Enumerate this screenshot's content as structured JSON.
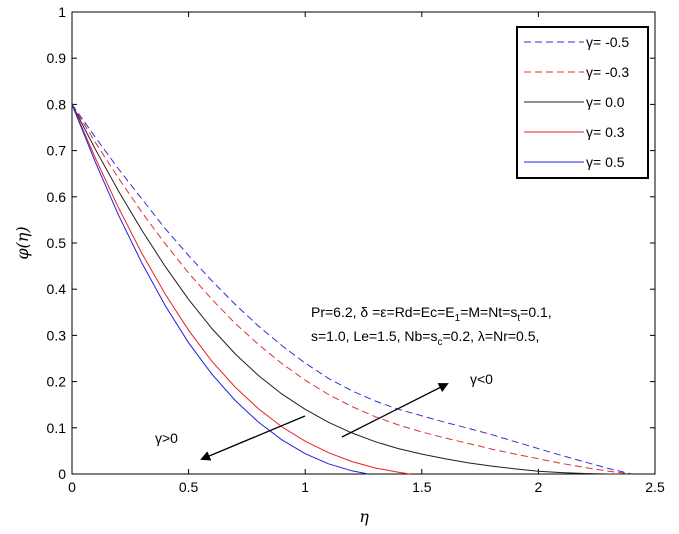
{
  "chart_data": {
    "type": "line",
    "xlabel": "η",
    "ylabel": "φ(η)",
    "xlim": [
      0,
      2.5
    ],
    "ylim": [
      0,
      1
    ],
    "x_ticks": [
      "0",
      "0.5",
      "1",
      "1.5",
      "2",
      "2.5"
    ],
    "y_ticks": [
      "0",
      "0.1",
      "0.2",
      "0.3",
      "0.4",
      "0.5",
      "0.6",
      "0.7",
      "0.8",
      "0.9",
      "1"
    ],
    "grid": false,
    "legend_position": "top-right",
    "series": [
      {
        "name": "γ= -0.5",
        "color": "#2f2fd8",
        "dash": "dashed",
        "x": [
          0,
          0.1,
          0.2,
          0.3,
          0.4,
          0.5,
          0.6,
          0.7,
          0.8,
          0.9,
          1.0,
          1.1,
          1.2,
          1.3,
          1.4,
          1.5,
          1.6,
          1.7,
          1.8,
          1.9,
          2.0,
          2.1,
          2.2,
          2.3,
          2.4
        ],
        "values": [
          0.8,
          0.729,
          0.66,
          0.595,
          0.531,
          0.473,
          0.418,
          0.367,
          0.32,
          0.278,
          0.24,
          0.207,
          0.18,
          0.158,
          0.14,
          0.126,
          0.112,
          0.099,
          0.085,
          0.07,
          0.055,
          0.04,
          0.026,
          0.012,
          0.0
        ]
      },
      {
        "name": "γ= -0.3",
        "color": "#e03030",
        "dash": "dashed",
        "x": [
          0,
          0.1,
          0.2,
          0.3,
          0.4,
          0.5,
          0.6,
          0.7,
          0.8,
          0.9,
          1.0,
          1.1,
          1.2,
          1.3,
          1.4,
          1.5,
          1.6,
          1.7,
          1.8,
          1.9,
          2.0,
          2.1,
          2.2,
          2.3,
          2.4
        ],
        "values": [
          0.8,
          0.718,
          0.64,
          0.566,
          0.498,
          0.435,
          0.378,
          0.326,
          0.28,
          0.239,
          0.203,
          0.172,
          0.146,
          0.124,
          0.106,
          0.091,
          0.078,
          0.066,
          0.054,
          0.043,
          0.033,
          0.023,
          0.014,
          0.006,
          0.0
        ]
      },
      {
        "name": "γ= 0.0",
        "color": "#202020",
        "dash": "solid",
        "x": [
          0,
          0.1,
          0.2,
          0.3,
          0.4,
          0.5,
          0.6,
          0.7,
          0.8,
          0.9,
          1.0,
          1.1,
          1.2,
          1.3,
          1.4,
          1.5,
          1.6,
          1.7,
          1.8,
          1.9,
          2.0,
          2.1,
          2.2,
          2.3,
          2.4
        ],
        "values": [
          0.8,
          0.703,
          0.612,
          0.527,
          0.449,
          0.378,
          0.315,
          0.26,
          0.213,
          0.173,
          0.14,
          0.112,
          0.089,
          0.07,
          0.055,
          0.043,
          0.033,
          0.024,
          0.017,
          0.011,
          0.006,
          0.003,
          0.001,
          0.0,
          0.0
        ]
      },
      {
        "name": "γ= 0.3",
        "color": "#e82020",
        "dash": "solid",
        "x": [
          0,
          0.1,
          0.2,
          0.3,
          0.4,
          0.5,
          0.6,
          0.7,
          0.8,
          0.9,
          1.0,
          1.1,
          1.2,
          1.3,
          1.4,
          1.45
        ],
        "values": [
          0.8,
          0.684,
          0.576,
          0.477,
          0.389,
          0.311,
          0.244,
          0.188,
          0.141,
          0.102,
          0.071,
          0.046,
          0.027,
          0.013,
          0.004,
          0.0
        ]
      },
      {
        "name": "γ= 0.5",
        "color": "#2020e0",
        "dash": "solid",
        "x": [
          0,
          0.1,
          0.2,
          0.3,
          0.4,
          0.5,
          0.6,
          0.7,
          0.8,
          0.9,
          1.0,
          1.1,
          1.2,
          1.27
        ],
        "values": [
          0.8,
          0.675,
          0.56,
          0.456,
          0.364,
          0.284,
          0.216,
          0.159,
          0.112,
          0.074,
          0.044,
          0.022,
          0.007,
          0.0
        ]
      }
    ],
    "annotations": {
      "params_line1": "Pr=6.2, δ =ε=Rd=Ec=E",
      "params_line1_sub": "1",
      "params_line1_rest": "=M=Nt=s",
      "params_line1_sub2": "t",
      "params_line1_end": "=0.1,",
      "params_line2": "s=1.0, Le=1.5, Nb=s",
      "params_line2_sub": "c",
      "params_line2_end": "=0.2, λ=Nr=0.5,",
      "arrow_neg_label": "γ<0",
      "arrow_pos_label": "γ>0"
    }
  }
}
